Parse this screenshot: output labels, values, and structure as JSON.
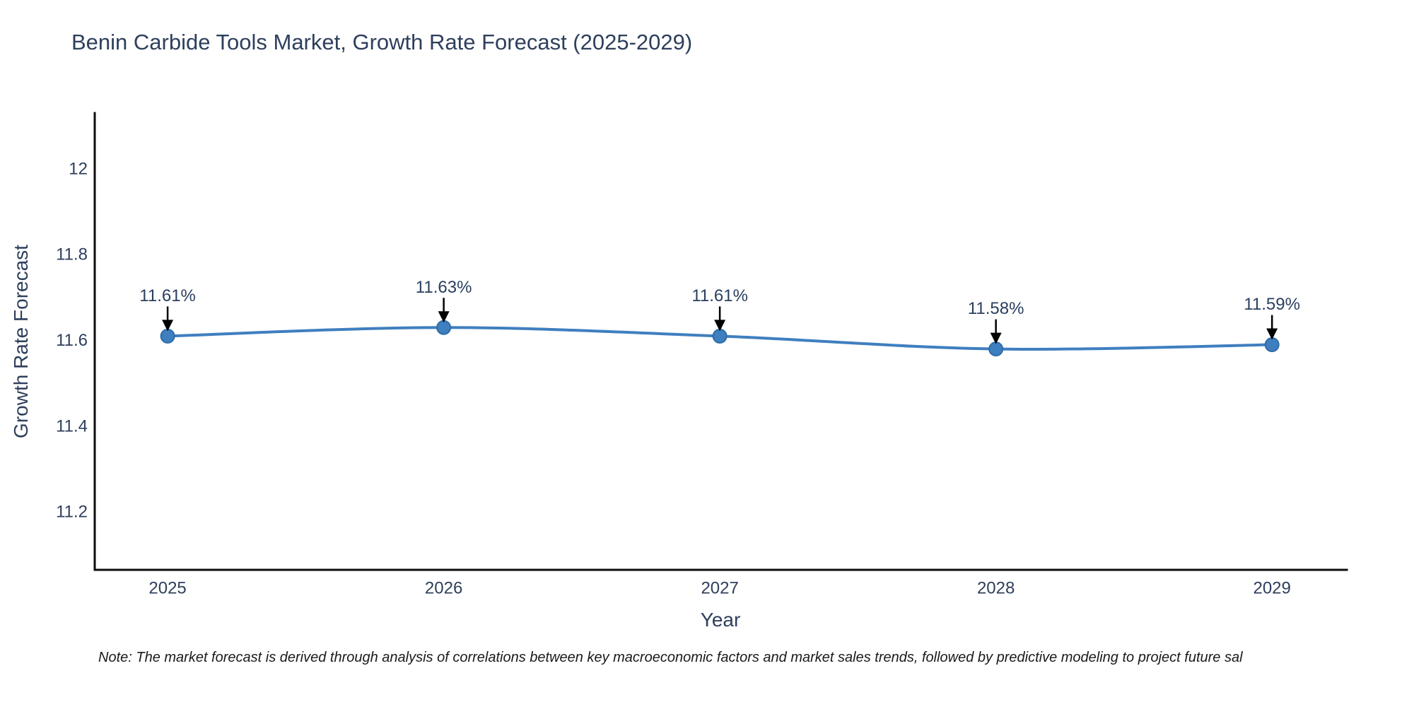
{
  "chart_data": {
    "type": "line",
    "title": "Benin Carbide Tools Market, Growth Rate Forecast (2025-2029)",
    "xlabel": "Year",
    "ylabel": "Growth Rate Forecast",
    "x": [
      2025,
      2026,
      2027,
      2028,
      2029
    ],
    "y": [
      11.61,
      11.63,
      11.61,
      11.58,
      11.59
    ],
    "point_labels": [
      "11.61%",
      "11.63%",
      "11.61%",
      "11.58%",
      "11.59%"
    ],
    "xtick_labels": [
      "2025",
      "2026",
      "2027",
      "2028",
      "2029"
    ],
    "yticks": [
      11.2,
      11.4,
      11.6,
      11.8,
      12
    ],
    "ytick_labels": [
      "11.2",
      "11.4",
      "11.6",
      "11.8",
      "12"
    ],
    "xlim": [
      2024.736,
      2029.271
    ],
    "ylim": [
      11.065,
      12.13
    ],
    "grid": false,
    "legend": false,
    "line_shape": "spline",
    "line_color": "#3f7fbf",
    "marker_color": "#3f7fbf",
    "marker_edge_color": "#2e6ca8",
    "axis_color": "#0d0d0d",
    "text_color": "#2e3f5c",
    "annotation_color": "#2a3f5f",
    "arrow_color": "#000000"
  },
  "note": "Note: The market forecast is derived through analysis of correlations between key macroeconomic factors and market sales trends, followed by predictive modeling to project future sal"
}
